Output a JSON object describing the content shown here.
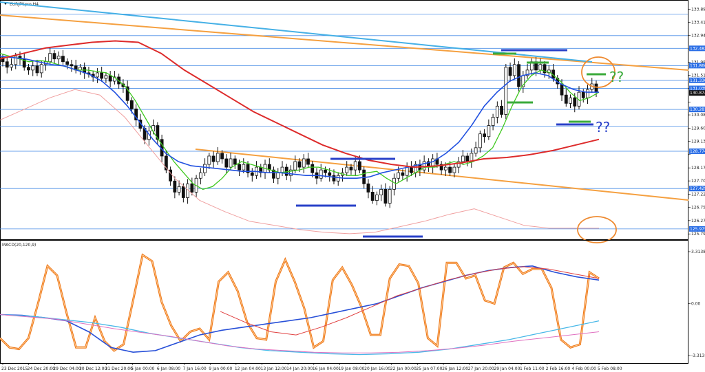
{
  "symbol": "EURJPY.pro,H4",
  "macd_label": "MACD(20,120,9)",
  "annotations": [
    "??",
    "??"
  ],
  "colors": {
    "bull": "#ffffff",
    "bear": "#111111",
    "wick": "#111111",
    "ema_fast": "#3ec81e",
    "ema_mid": "#2050e0",
    "ma_red": "#dd2b2b",
    "ma_pink": "#f0a0a0",
    "trend_orange": "#f5a040",
    "trend_cyan": "#45b0e6",
    "hline": "#4a8ee6",
    "level_blue": "#2840c8",
    "level_green": "#3aaa3a",
    "circle": "#ee8a30",
    "qq_green": "#3aaa3a",
    "qq_blue": "#2840c8",
    "stoch": "#ef7a1c",
    "macd_blue": "#2850d8",
    "macd_cyan": "#48b8e8",
    "macd_pink": "#e070c0",
    "macd_red": "#e04040"
  },
  "chart_data": [
    {
      "type": "line",
      "title": "EURJPY.pro,H4",
      "y_ticks": [
        133.894,
        133.414,
        132.944,
        132.464,
        131.984,
        131.514,
        131.034,
        130.544,
        130.084,
        129.604,
        129.134,
        128.654,
        128.174,
        127.704,
        127.224,
        126.754,
        126.274,
        125.794
      ],
      "y_tick_labels": [
        "133.894",
        "133.414",
        "132.944",
        "",
        "131.984",
        "131.514",
        "",
        "",
        "130.084",
        "129.604",
        "129.134",
        "",
        "128.174",
        "127.704",
        "127.224",
        "126.754",
        "126.274",
        "125.794"
      ],
      "ylim": [
        125.65,
        134.15
      ],
      "price_boxes": [
        {
          "label": "132.482",
          "y": 132.482,
          "color": "#2a6ee6"
        },
        {
          "label": "131.860",
          "y": 131.86,
          "color": "#2a6ee6"
        },
        {
          "label": "131.330",
          "y": 131.33,
          "color": "#2a6ee6"
        },
        {
          "label": "131.039",
          "y": 131.039,
          "color": "#2a6ee6"
        },
        {
          "label": "130.874",
          "y": 130.874,
          "color": "#111111"
        },
        {
          "label": "130.281",
          "y": 130.281,
          "color": "#2a6ee6"
        },
        {
          "label": "128.774",
          "y": 128.774,
          "color": "#2a6ee6"
        },
        {
          "label": "127.429",
          "y": 127.429,
          "color": "#2a6ee6"
        },
        {
          "label": "125.975",
          "y": 125.975,
          "color": "#2a6ee6"
        }
      ],
      "horizontal_levels": [
        133.72,
        132.94,
        132.482,
        131.86,
        131.33,
        131.039,
        130.281,
        129.68,
        128.774,
        127.429,
        125.975
      ],
      "x_labels": [
        "23 Dec 2015",
        "24 Dec 20:00",
        "29 Dec 04:00",
        "30 Dec 12:00",
        "31 Dec 20:00",
        "5 Jan 00:00",
        "6 Jan 08:00",
        "7 Jan 16:00",
        "9 Jan 00:00",
        "12 Jan 04:00",
        "13 Jan 12:00",
        "14 Jan 20:00",
        "16 Jan 04:00",
        "19 Jan 08:00",
        "20 Jan 16:00",
        "22 Jan 00:00",
        "25 Jan 07:00",
        "26 Jan 12:00",
        "27 Jan 20:00",
        "29 Jan 04:00",
        "1 Feb 11:00",
        "2 Feb 16:00",
        "4 Feb 00:00",
        "5 Feb 08:00"
      ],
      "close": [
        132.0,
        131.8,
        131.9,
        132.2,
        132.1,
        131.8,
        131.7,
        131.85,
        131.6,
        131.9,
        132.0,
        132.3,
        132.1,
        132.2,
        132.0,
        131.9,
        131.85,
        131.7,
        131.8,
        131.6,
        131.55,
        131.45,
        131.6,
        131.4,
        131.5,
        131.3,
        131.45,
        131.2,
        131.1,
        130.6,
        130.3,
        129.9,
        129.6,
        129.2,
        129.5,
        129.7,
        129.2,
        128.6,
        128.1,
        127.7,
        127.3,
        127.5,
        127.1,
        127.6,
        127.3,
        127.8,
        128.0,
        128.3,
        128.6,
        128.4,
        128.7,
        128.5,
        128.2,
        128.5,
        128.3,
        128.1,
        128.3,
        128.0,
        127.9,
        128.2,
        128.0,
        128.3,
        128.1,
        127.8,
        128.0,
        128.2,
        127.9,
        128.1,
        128.4,
        128.2,
        128.5,
        128.3,
        128.0,
        127.8,
        128.1,
        128.0,
        127.9,
        127.7,
        127.9,
        128.0,
        128.2,
        128.1,
        128.4,
        128.1,
        127.6,
        127.3,
        127.0,
        127.2,
        127.4,
        126.9,
        127.4,
        127.8,
        128.0,
        127.9,
        128.2,
        128.0,
        128.3,
        128.1,
        128.4,
        128.2,
        128.5,
        128.3,
        128.1,
        128.2,
        128.0,
        128.2,
        128.4,
        128.6,
        128.4,
        128.7,
        128.9,
        129.4,
        129.3,
        129.7,
        130.0,
        130.4,
        130.1,
        131.8,
        131.5,
        131.9,
        131.1,
        131.5,
        131.7,
        132.0,
        131.7,
        131.9,
        131.6,
        131.7,
        131.4,
        131.2,
        130.8,
        130.5,
        130.7,
        130.4,
        130.9,
        130.7,
        131.0,
        131.2,
        130.9
      ],
      "series": [
        {
          "name": "",
          "color": "#3ec81e",
          "values": [
            132.3,
            132.2,
            132.1,
            132.0,
            132.05,
            132.0,
            131.9,
            131.8,
            131.7,
            131.7,
            131.65,
            131.6,
            131.4,
            131.1,
            130.6,
            130.0,
            129.4,
            128.9,
            128.4,
            128.0,
            127.6,
            127.4,
            127.5,
            127.8,
            128.2,
            128.4,
            128.3,
            128.2,
            128.1,
            128.0,
            128.05,
            128.1,
            128.2,
            128.2,
            128.1,
            128.0,
            127.9,
            127.9,
            128.0,
            128.05,
            127.8,
            127.6,
            127.8,
            128.0,
            128.2,
            128.2,
            128.3,
            128.4,
            128.3,
            128.4,
            128.6,
            128.9,
            129.6,
            130.4,
            131.1,
            131.5,
            131.7,
            131.6,
            131.3,
            130.9,
            130.6,
            130.7,
            130.9
          ]
        },
        {
          "name": "",
          "color": "#2050e0",
          "values": [
            132.2,
            132.15,
            132.1,
            132.0,
            131.9,
            131.85,
            131.7,
            131.55,
            131.3,
            130.9,
            130.4,
            129.8,
            129.2,
            128.7,
            128.4,
            128.25,
            128.2,
            128.15,
            128.1,
            128.05,
            128.05,
            128.0,
            128.0,
            127.95,
            127.9,
            127.9,
            127.85,
            127.8,
            127.8,
            127.85,
            128.0,
            128.1,
            128.2,
            128.3,
            128.4,
            128.7,
            129.1,
            129.7,
            130.4,
            130.9,
            131.3,
            131.5,
            131.6,
            131.5,
            131.2,
            131.0,
            130.9,
            130.9
          ]
        },
        {
          "name": "",
          "color": "#dd2b2b",
          "values": [
            132.1,
            132.3,
            132.5,
            132.6,
            132.7,
            132.75,
            132.7,
            132.3,
            131.7,
            131.2,
            130.7,
            130.2,
            129.8,
            129.4,
            129.0,
            128.7,
            128.45,
            128.3,
            128.2,
            128.25,
            128.35,
            128.5,
            128.55,
            128.65,
            128.8,
            129.0,
            129.2
          ]
        },
        {
          "name": "",
          "color": "#f0a0a0",
          "values": [
            129.9,
            130.3,
            130.7,
            131.0,
            130.8,
            130.0,
            128.9,
            127.8,
            127.0,
            126.6,
            126.25,
            126.1,
            125.95,
            125.85,
            125.8,
            125.85,
            126.05,
            126.25,
            126.5,
            126.7,
            126.4,
            126.1,
            126.0,
            126.0,
            126.0
          ]
        }
      ]
    },
    {
      "type": "line",
      "title": "MACD(20,120,9)",
      "y_ticks": [
        3.3138,
        0.0,
        -3.3138
      ],
      "y_tick_labels": [
        "3.3138",
        "0.00",
        "-3.3138"
      ],
      "ylim": [
        -3.75,
        3.75
      ],
      "series": [
        {
          "name": "",
          "color": "#ef7a1c",
          "values": [
            -2.2,
            -2.8,
            -2.9,
            -2.2,
            0.0,
            2.4,
            1.8,
            -0.6,
            -2.8,
            -2.8,
            -0.9,
            -2.4,
            -3.0,
            -2.6,
            0.2,
            3.1,
            2.7,
            0.1,
            -1.4,
            -2.4,
            -1.8,
            -1.6,
            -2.3,
            1.4,
            2.0,
            0.8,
            -1.2,
            -2.2,
            -2.3,
            1.4,
            2.8,
            1.4,
            -0.3,
            -2.8,
            -2.4,
            1.5,
            2.3,
            1.2,
            -0.2,
            -2.0,
            -2.0,
            1.6,
            2.5,
            2.4,
            1.3,
            -2.2,
            -2.7,
            2.6,
            2.6,
            1.6,
            1.8,
            0.2,
            0.0,
            2.3,
            2.6,
            1.9,
            2.2,
            2.2,
            1.0,
            -2.3,
            -2.8,
            -2.6,
            2.0,
            1.6
          ]
        },
        {
          "name": "",
          "color": "#2850d8",
          "values": [
            -0.7,
            -0.75,
            -0.9,
            -1.1,
            -1.8,
            -2.8,
            -3.1,
            -3.0,
            -2.5,
            -2.0,
            -1.7,
            -1.5,
            -1.3,
            -1.1,
            -0.9,
            -0.6,
            -0.3,
            0.0,
            0.5,
            1.0,
            1.4,
            1.8,
            2.1,
            2.3,
            2.4,
            2.0,
            1.7,
            1.5
          ]
        },
        {
          "name": "",
          "color": "#48b8e8",
          "values": [
            -0.7,
            -0.8,
            -1.0,
            -1.2,
            -1.5,
            -1.9,
            -2.2,
            -2.5,
            -2.8,
            -3.0,
            -3.1,
            -3.2,
            -3.25,
            -3.2,
            -3.1,
            -2.9,
            -2.6,
            -2.3,
            -1.9,
            -1.5,
            -1.1
          ]
        },
        {
          "name": "",
          "color": "#e070c0",
          "values": [
            -0.7,
            -0.85,
            -1.0,
            -1.3,
            -1.6,
            -1.85,
            -2.1,
            -2.4,
            -2.7,
            -2.9,
            -3.0,
            -3.1,
            -3.15,
            -3.15,
            -3.1,
            -3.0,
            -2.85,
            -2.65,
            -2.4,
            -2.2,
            -2.0,
            -1.8
          ]
        },
        {
          "name": "",
          "color": "#e04040",
          "values": [
            -0.5,
            -1.2,
            -1.8,
            -2.0,
            -1.5,
            -0.9,
            -0.2,
            0.5,
            1.0,
            1.5,
            1.9,
            2.2,
            2.35,
            2.2,
            1.9,
            1.6
          ]
        }
      ]
    }
  ]
}
